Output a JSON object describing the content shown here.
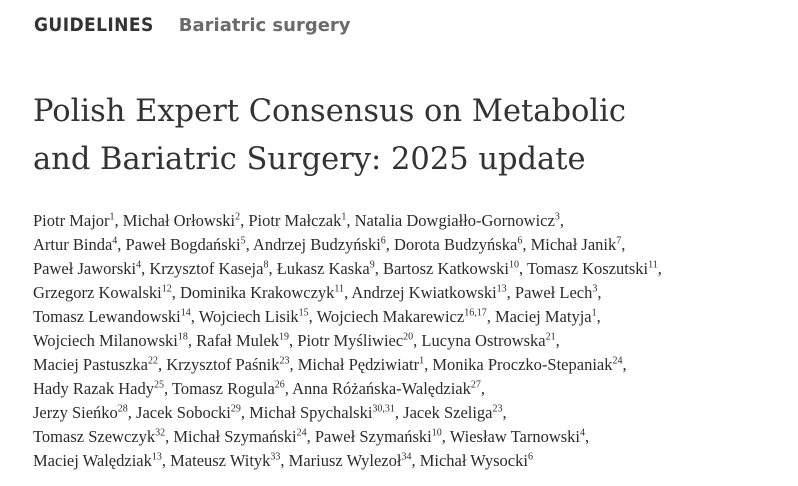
{
  "header": {
    "kind": "GUIDELINES",
    "topic": "Bariatric surgery"
  },
  "title_lines": [
    "Polish Expert Consensus on Metabolic",
    "and Bariatric Surgery: 2025 update"
  ],
  "author_lines": [
    [
      [
        "Piotr Major",
        "1",
        ", "
      ],
      [
        "Michał Orłowski",
        "2",
        ", "
      ],
      [
        "Piotr Małczak",
        "1",
        ", "
      ],
      [
        "Natalia Dowgiałło-Gornowicz",
        "3",
        ","
      ]
    ],
    [
      [
        "Artur Binda",
        "4",
        ", "
      ],
      [
        "Paweł Bogdański",
        "5",
        ", "
      ],
      [
        "Andrzej Budzyński",
        "6",
        ", "
      ],
      [
        "Dorota Budzyńska",
        "6",
        ", "
      ],
      [
        "Michał Janik",
        "7",
        ","
      ]
    ],
    [
      [
        "Paweł Jaworski",
        "4",
        ", "
      ],
      [
        "Krzysztof Kaseja",
        "8",
        ", "
      ],
      [
        "Łukasz Kaska",
        "9",
        ", "
      ],
      [
        "Bartosz Katkowski",
        "10",
        ", "
      ],
      [
        "Tomasz Koszutski",
        "11",
        ","
      ]
    ],
    [
      [
        "Grzegorz Kowalski",
        "12",
        ", "
      ],
      [
        "Dominika Krakowczyk",
        "11",
        ", "
      ],
      [
        "Andrzej Kwiatkowski",
        "13",
        ", "
      ],
      [
        "Paweł Lech",
        "3",
        ","
      ]
    ],
    [
      [
        "Tomasz Lewandowski",
        "14",
        ", "
      ],
      [
        "Wojciech Lisik",
        "15",
        ", "
      ],
      [
        "Wojciech Makarewicz",
        "16,17",
        ", "
      ],
      [
        "Maciej Matyja",
        "1",
        ","
      ]
    ],
    [
      [
        "Wojciech Milanowski",
        "18",
        ", "
      ],
      [
        "Rafał Mulek",
        "19",
        ", "
      ],
      [
        "Piotr Myśliwiec",
        "20",
        ", "
      ],
      [
        "Lucyna Ostrowska",
        "21",
        ","
      ]
    ],
    [
      [
        "Maciej Pastuszka",
        "22",
        ", "
      ],
      [
        "Krzysztof Paśnik",
        "23",
        ", "
      ],
      [
        "Michał Pędziwiatr",
        "1",
        ", "
      ],
      [
        "Monika Proczko-Stepaniak",
        "24",
        ","
      ]
    ],
    [
      [
        "Hady Razak Hady",
        "25",
        ", "
      ],
      [
        "Tomasz Rogula",
        "26",
        ", "
      ],
      [
        "Anna Różańska-Walędziak",
        "27",
        ","
      ]
    ],
    [
      [
        "Jerzy Sieńko",
        "28",
        ", "
      ],
      [
        "Jacek Sobocki",
        "29",
        ", "
      ],
      [
        "Michał Spychalski",
        "30,31",
        ", "
      ],
      [
        "Jacek Szeliga",
        "23",
        ","
      ]
    ],
    [
      [
        "Tomasz Szewczyk",
        "32",
        ", "
      ],
      [
        "Michał Szymański",
        "24",
        ", "
      ],
      [
        "Paweł Szymański",
        "10",
        ", "
      ],
      [
        "Wiesław Tarnowski",
        "4",
        ","
      ]
    ],
    [
      [
        "Maciej Walędziak",
        "13",
        ", "
      ],
      [
        "Mateusz Wityk",
        "33",
        ", "
      ],
      [
        "Mariusz Wylezoł",
        "34",
        ", "
      ],
      [
        "Michał Wysocki",
        "6",
        ""
      ]
    ]
  ]
}
